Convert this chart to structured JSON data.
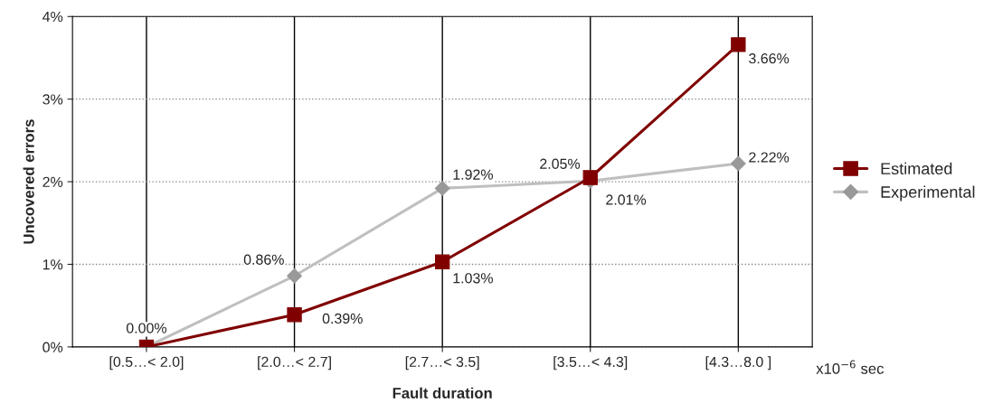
{
  "chart_data": {
    "type": "line",
    "xlabel": "Fault duration",
    "ylabel": "Uncovered errors",
    "categories": [
      "[0.5…< 2.0]",
      "[2.0…< 2.7]",
      "[2.7…< 3.5]",
      "[3.5…< 4.3]",
      "[4.3…8.0 ]"
    ],
    "series": [
      {
        "name": "Estimated",
        "color": "#800000",
        "marker": "square",
        "values": [
          0.0,
          0.39,
          1.03,
          2.05,
          3.66
        ],
        "value_labels": [
          "0.00%",
          "0.39%",
          "1.03%",
          "2.05%",
          "3.66%"
        ]
      },
      {
        "name": "Experimental",
        "color": "#bfbfbf",
        "marker": "diamond",
        "values": [
          0.0,
          0.86,
          1.92,
          2.01,
          2.22
        ],
        "value_labels": [
          null,
          "0.86%",
          "1.92%",
          "2.01%",
          "2.22%"
        ]
      }
    ],
    "ylim": [
      0,
      4
    ],
    "yticks": [
      {
        "value": 0,
        "label": "0%"
      },
      {
        "value": 1,
        "label": "1%"
      },
      {
        "value": 2,
        "label": "2%"
      },
      {
        "value": 3,
        "label": "3%"
      },
      {
        "value": 4,
        "label": "4%"
      }
    ],
    "grid": true,
    "legend": "right",
    "annotations": [
      "x10$^{−6}$ sec"
    ]
  }
}
